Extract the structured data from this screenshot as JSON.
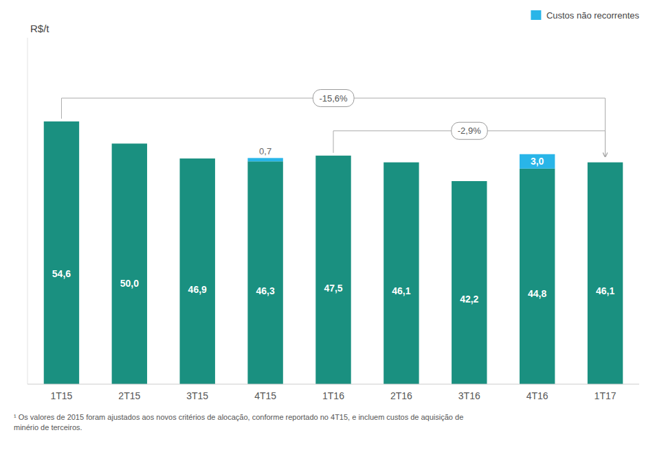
{
  "chart_data": {
    "type": "bar",
    "stacked": true,
    "categories": [
      "1T15",
      "2T15",
      "3T15",
      "4T15",
      "1T16",
      "2T16",
      "3T16",
      "4T16",
      "1T17"
    ],
    "series": [
      {
        "color": "#1a9080",
        "values": [
          54.6,
          50.0,
          46.9,
          46.3,
          47.5,
          46.1,
          42.2,
          44.8,
          46.1
        ],
        "value_labels": [
          "54,6",
          "50,0",
          "46,9",
          "46,3",
          "47,5",
          "46,1",
          "42,2",
          "44,8",
          "46,1"
        ]
      },
      {
        "name": "Custos não recorrentes",
        "color": "#29b5e8",
        "values": [
          0,
          0,
          0,
          0.7,
          0,
          0,
          0,
          3.0,
          0
        ],
        "value_labels": [
          null,
          null,
          null,
          "0,7",
          null,
          null,
          null,
          "3,0",
          null
        ]
      }
    ],
    "ylabel": "R$/t",
    "ylim": [
      0,
      72
    ],
    "tick_labels": "x",
    "grid": false,
    "legend": "top-right",
    "data_labels": true,
    "annotations": [
      {
        "text": "-15,6%",
        "from": "1T15",
        "to": "1T17"
      },
      {
        "text": "-2,9%",
        "from": "1T16",
        "to": "1T17"
      }
    ],
    "footnote": "¹ Os valores de 2015 foram ajustados aos novos critérios de alocação, conforme reportado no 4T15, e incluem custos de aquisição de\nminério de terceiros."
  }
}
